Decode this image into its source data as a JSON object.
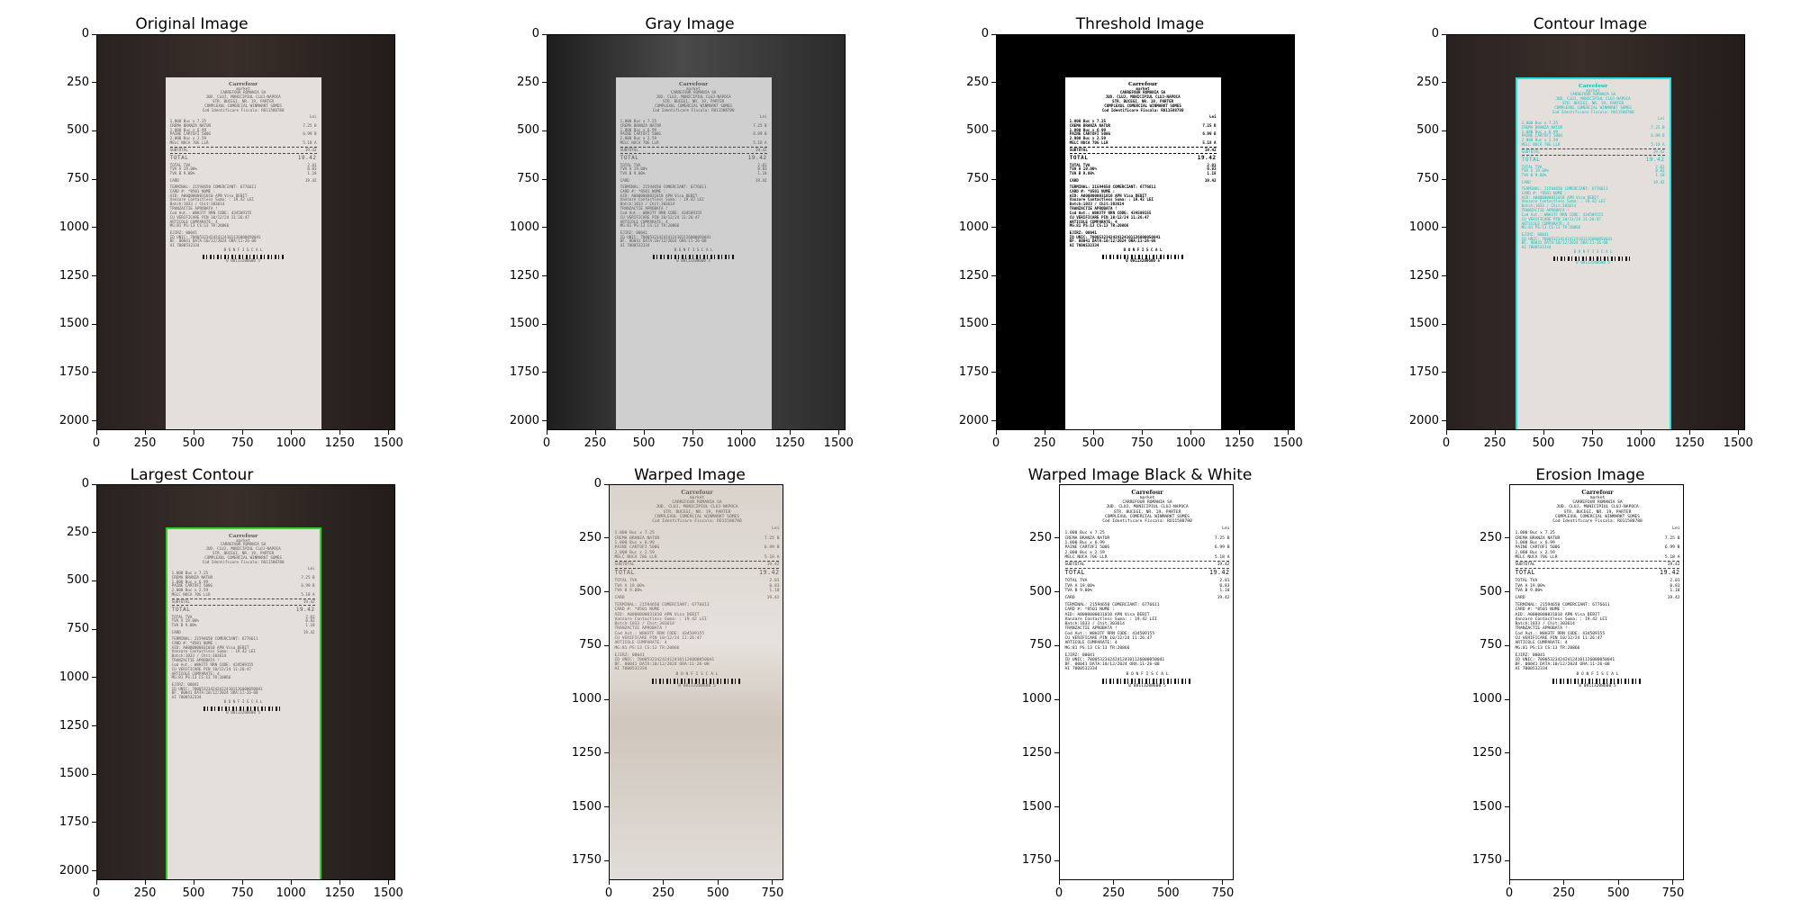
{
  "panels": [
    {
      "title": "Original Image",
      "xticks": [
        "0",
        "250",
        "500",
        "750",
        "1000",
        "1250",
        "1500"
      ],
      "yticks": [
        "0",
        "250",
        "500",
        "750",
        "1000",
        "1250",
        "1500",
        "1750",
        "2000"
      ],
      "style": "original"
    },
    {
      "title": "Gray Image",
      "xticks": [
        "0",
        "250",
        "500",
        "750",
        "1000",
        "1250",
        "1500"
      ],
      "yticks": [
        "0",
        "250",
        "500",
        "750",
        "1000",
        "1250",
        "1500",
        "1750",
        "2000"
      ],
      "style": "gray"
    },
    {
      "title": "Threshold Image",
      "xticks": [
        "0",
        "250",
        "500",
        "750",
        "1000",
        "1250",
        "1500"
      ],
      "yticks": [
        "0",
        "250",
        "500",
        "750",
        "1000",
        "1250",
        "1500",
        "1750",
        "2000"
      ],
      "style": "threshold"
    },
    {
      "title": "Contour Image",
      "xticks": [
        "0",
        "250",
        "500",
        "750",
        "1000",
        "1250",
        "1500"
      ],
      "yticks": [
        "0",
        "250",
        "500",
        "750",
        "1000",
        "1250",
        "1500",
        "1750",
        "2000"
      ],
      "style": "contour"
    },
    {
      "title": "Largest Contour",
      "xticks": [
        "0",
        "250",
        "500",
        "750",
        "1000",
        "1250",
        "1500"
      ],
      "yticks": [
        "0",
        "250",
        "500",
        "750",
        "1000",
        "1250",
        "1500",
        "1750",
        "2000"
      ],
      "style": "largest"
    },
    {
      "title": "Warped Image",
      "xticks": [
        "0",
        "250",
        "500",
        "750"
      ],
      "yticks": [
        "0",
        "250",
        "500",
        "750",
        "1000",
        "1250",
        "1500",
        "1750"
      ],
      "style": "warped"
    },
    {
      "title": "Warped Image Black & White",
      "xticks": [
        "0",
        "250",
        "500",
        "750"
      ],
      "yticks": [
        "250",
        "500",
        "750",
        "1000",
        "1250",
        "1500",
        "1750"
      ],
      "style": "bw"
    },
    {
      "title": "Erosion Image",
      "xticks": [
        "0",
        "250",
        "500",
        "750"
      ],
      "yticks": [
        "250",
        "500",
        "750",
        "1000",
        "1250",
        "1500",
        "1750"
      ],
      "style": "erosion"
    }
  ],
  "receipt": {
    "brand": "Carrefour",
    "brand_sub": "market",
    "header": [
      "CARREFOUR ROMANIA SA",
      "JUD. CLUJ, MUNICIPIUL CLUJ-NAPOCA",
      "STR. BUCEGI, NR. 19, PARTER",
      "COMPLEXUL COMERCIAL WINMARKT SOMES",
      "Cod Identificare Fiscala: RO11588780"
    ],
    "currency": "Lei",
    "items": [
      {
        "qty": "1.000   Buc x 7.25",
        "name": "CREMA BRANZA NATUR",
        "price": "7.25 B"
      },
      {
        "qty": "1.000   Buc x 6.99",
        "name": "PAINE CARTOFI 500G",
        "price": "6.99 B"
      },
      {
        "qty": "2.000   Buc x 2.59",
        "name": "MELC NUCA 70G LLR",
        "price": "5.18 A"
      }
    ],
    "subtotal_label": "SUBTOTAL",
    "subtotal": "19.42",
    "total_label": "TOTAL",
    "total": "19.42",
    "tva": [
      {
        "label": "TOTAL TVA",
        "value": "2.01"
      },
      {
        "label": "TVA A   19.00%",
        "value": "0.83"
      },
      {
        "label": "TVA B    9.00%",
        "value": "1.18"
      }
    ],
    "card_label": "CARD",
    "card_value": "19.42",
    "terminal": [
      "TERMINAL: 21594650   COMERCIANT: 6776611",
      "CARD #: *8501        NUME :",
      "AID: A0000000031010  APN Visa DEBIT",
      "Vanzare Contactless  Suma: : 19.42  LEI",
      "Batch:1033 / Chit:303614",
      "TRANZACTIE APROBATA !",
      "Cod Aut.: W8H3TF     RRN CODE: 434509155",
      "CU VERIFICARE PIN    10/12/24  11:26:47",
      "ARTICOLE CUMPARATE: 4",
      "MG:81 PS:13 CS:13 TR:20866"
    ],
    "footer": [
      "EJIRZ: 00041",
      "ID UNIC: 7000532342424124101126000050041",
      "BF. 00041      DATA:10/12/2024   ORA:11-26-08",
      "AI          7000532334"
    ],
    "fiscal": "B O N  F I S C A L",
    "barcode_number": "0 08113208600 5"
  },
  "colors": {
    "background": "#ffffff",
    "dark_floor": "#3a2f2a",
    "paper": "#e4dfdb",
    "contour_cyan": "#22e3e3",
    "contour_green": "#2fd12f"
  }
}
